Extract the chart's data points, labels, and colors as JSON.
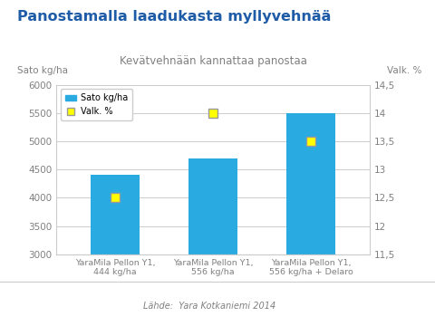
{
  "title": "Panostamalla laadukasta myllyvehnää",
  "subtitle": "Kevätvehnään kannattaa panostaa",
  "left_ylabel": "Sato kg/ha",
  "right_ylabel": "Valk. %",
  "source": "Lähde:  Yara Kotkaniemi 2014",
  "categories": [
    "YaraMila Pellon Y1,\n444 kg/ha",
    "YaraMila Pellon Y1,\n556 kg/ha",
    "YaraMila Pellon Y1,\n556 kg/ha + Delaro"
  ],
  "bar_values": [
    4400,
    4700,
    5500
  ],
  "valk_values": [
    12.5,
    14.0,
    13.5
  ],
  "bar_color": "#29ABE2",
  "marker_color": "#FFFF00",
  "marker_edge_color": "#999999",
  "ylim_left": [
    3000,
    6000
  ],
  "ylim_right": [
    11.5,
    14.5
  ],
  "yticks_left": [
    3000,
    3500,
    4000,
    4500,
    5000,
    5500,
    6000
  ],
  "yticks_right": [
    11.5,
    12.0,
    12.5,
    13.0,
    13.5,
    14.0,
    14.5
  ],
  "title_color": "#1F5CA8",
  "subtitle_color": "#808080",
  "axis_label_color": "#808080",
  "tick_color": "#808080",
  "background_color": "#FFFFFF",
  "grid_color": "#CCCCCC",
  "legend_labels": [
    "Sato kg/ha",
    "Valk. %"
  ]
}
